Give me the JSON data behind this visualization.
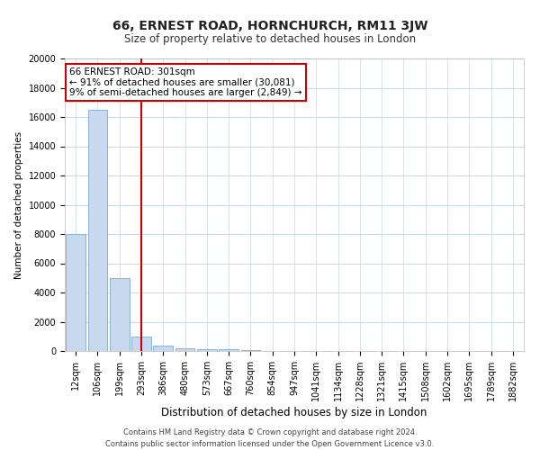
{
  "title": "66, ERNEST ROAD, HORNCHURCH, RM11 3JW",
  "subtitle": "Size of property relative to detached houses in London",
  "xlabel": "Distribution of detached houses by size in London",
  "ylabel": "Number of detached properties",
  "categories": [
    "12sqm",
    "106sqm",
    "199sqm",
    "293sqm",
    "386sqm",
    "480sqm",
    "573sqm",
    "667sqm",
    "760sqm",
    "854sqm",
    "947sqm",
    "1041sqm",
    "1134sqm",
    "1228sqm",
    "1321sqm",
    "1415sqm",
    "1508sqm",
    "1602sqm",
    "1695sqm",
    "1789sqm",
    "1882sqm"
  ],
  "values": [
    8000,
    16500,
    5000,
    1000,
    400,
    200,
    150,
    100,
    50,
    0,
    0,
    0,
    0,
    0,
    0,
    0,
    0,
    0,
    0,
    0,
    0
  ],
  "bar_color": "#c8d8ee",
  "bar_edge_color": "#7aabcf",
  "property_line_x": 3.0,
  "annotation_text_line1": "66 ERNEST ROAD: 301sqm",
  "annotation_text_line2": "← 91% of detached houses are smaller (30,081)",
  "annotation_text_line3": "9% of semi-detached houses are larger (2,849) →",
  "ylim": [
    0,
    20000
  ],
  "yticks": [
    0,
    2000,
    4000,
    6000,
    8000,
    10000,
    12000,
    14000,
    16000,
    18000,
    20000
  ],
  "footer_line1": "Contains HM Land Registry data © Crown copyright and database right 2024.",
  "footer_line2": "Contains public sector information licensed under the Open Government Licence v3.0.",
  "background_color": "#ffffff",
  "grid_color": "#c8d8e8",
  "annotation_box_color": "#ffffff",
  "annotation_box_edge": "#cc0000",
  "vline_color": "#cc0000",
  "title_fontsize": 10,
  "subtitle_fontsize": 8.5,
  "ylabel_fontsize": 7.5,
  "xlabel_fontsize": 8.5,
  "tick_fontsize": 7,
  "footer_fontsize": 6
}
